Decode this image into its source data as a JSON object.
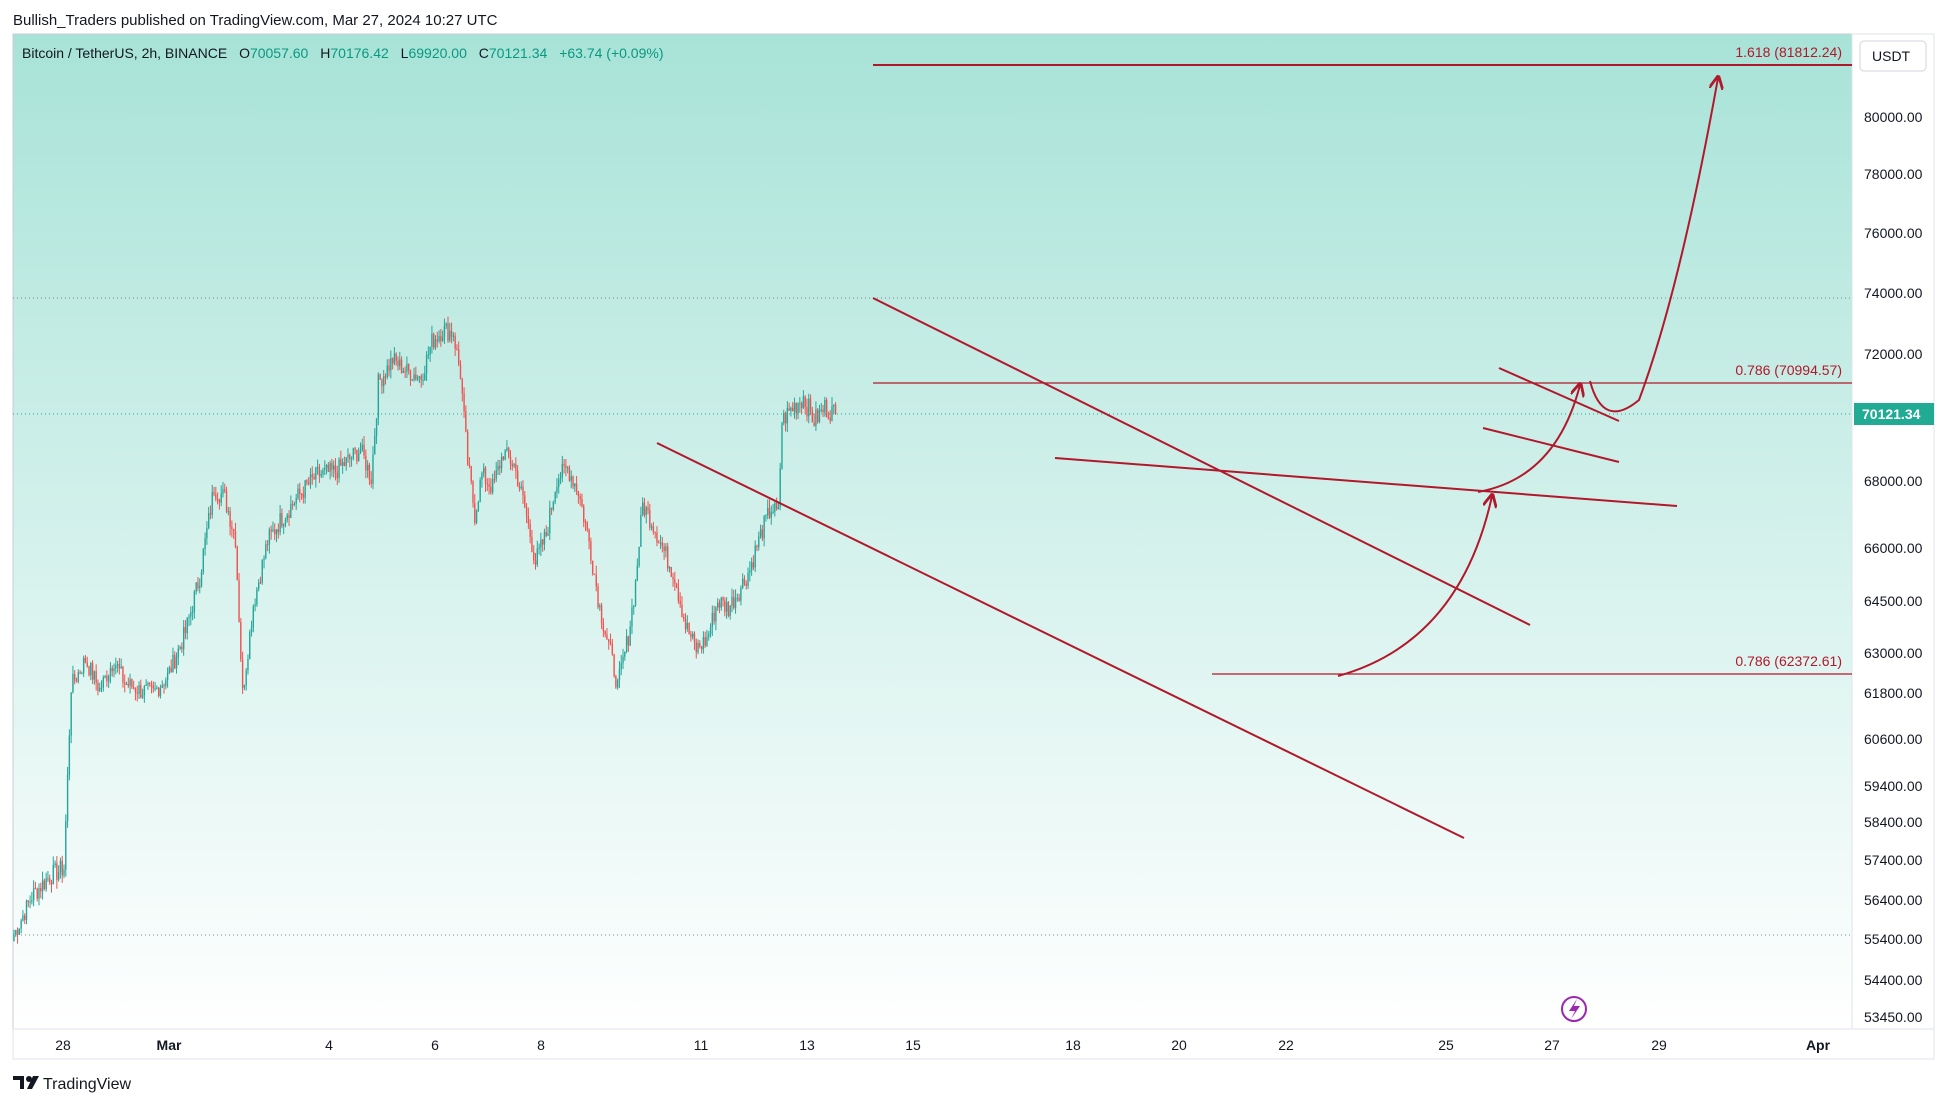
{
  "header": {
    "published_by": "Bullish_Traders published on TradingView.com, Mar 27, 2024 10:27 UTC"
  },
  "symbol_bar": {
    "pair": "Bitcoin / TetherUS, 2h, BINANCE",
    "open_label": "O",
    "open_value": "70057.60",
    "high_label": "H",
    "high_value": "70176.42",
    "low_label": "L",
    "low_value": "69920.00",
    "close_label": "C",
    "close_value": "70121.34",
    "change": "+63.74 (+0.09%)"
  },
  "currency_button": "USDT",
  "price_axis": {
    "ticks": [
      "80000.00",
      "78000.00",
      "76000.00",
      "74000.00",
      "72000.00",
      "68000.00",
      "66000.00",
      "64500.00",
      "63000.00",
      "61800.00",
      "60600.00",
      "59400.00",
      "58400.00",
      "57400.00",
      "56400.00",
      "55400.00",
      "54400.00",
      "53450.00"
    ],
    "current_price": "70121.34"
  },
  "time_axis": {
    "ticks": [
      "28",
      "Mar",
      "4",
      "6",
      "8",
      "11",
      "13",
      "15",
      "18",
      "20",
      "22",
      "25",
      "27",
      "29",
      "Apr"
    ]
  },
  "fib_labels": {
    "fib_1618": "1.618 (81812.24)",
    "fib_0786_top": "0.786 (70994.57)",
    "fib_0786_bottom": "0.786 (62372.61)"
  },
  "footer": {
    "brand": "TradingView"
  },
  "colors": {
    "bull": "#26a69a",
    "bear": "#ef5350",
    "drawing": "#b2182b",
    "bg_top": "#a8e3d8",
    "bg_bottom": "#ffffff",
    "price_badge": "#22ab94"
  },
  "chart_data": {
    "type": "candlestick",
    "title": "Bitcoin / TetherUS, 2h, BINANCE",
    "ylabel": "USDT",
    "ylim": [
      53450,
      82500
    ],
    "x_ticks": [
      "28",
      "Mar",
      "4",
      "6",
      "8",
      "11",
      "13",
      "15",
      "18",
      "20",
      "22",
      "25",
      "27",
      "29",
      "Apr"
    ],
    "ohlc_last": {
      "open": 70057.6,
      "high": 70176.42,
      "low": 69920.0,
      "close": 70121.34,
      "change": 63.74,
      "change_pct": 0.09
    },
    "fib_levels": [
      {
        "ratio": 1.618,
        "price": 81812.24
      },
      {
        "ratio": 0.786,
        "price": 70994.57
      },
      {
        "ratio": 0.786,
        "price": 62372.61
      }
    ],
    "dotted_levels": [
      73800,
      55300
    ],
    "anchors": [
      {
        "t": 0,
        "p": 55500
      },
      {
        "t": 10,
        "p": 56500
      },
      {
        "t": 20,
        "p": 57000
      },
      {
        "t": 28,
        "p": 57200
      },
      {
        "t": 32,
        "p": 62000
      },
      {
        "t": 40,
        "p": 62800
      },
      {
        "t": 48,
        "p": 61900
      },
      {
        "t": 56,
        "p": 62800
      },
      {
        "t": 62,
        "p": 62100
      },
      {
        "t": 70,
        "p": 61900
      },
      {
        "t": 78,
        "p": 61800
      },
      {
        "t": 86,
        "p": 62300
      },
      {
        "t": 96,
        "p": 63600
      },
      {
        "t": 104,
        "p": 65200
      },
      {
        "t": 112,
        "p": 67800
      },
      {
        "t": 118,
        "p": 67500
      },
      {
        "t": 124,
        "p": 66300
      },
      {
        "t": 128,
        "p": 61800
      },
      {
        "t": 134,
        "p": 64400
      },
      {
        "t": 142,
        "p": 66200
      },
      {
        "t": 150,
        "p": 66900
      },
      {
        "t": 160,
        "p": 67600
      },
      {
        "t": 170,
        "p": 68200
      },
      {
        "t": 180,
        "p": 68300
      },
      {
        "t": 188,
        "p": 68700
      },
      {
        "t": 194,
        "p": 69000
      },
      {
        "t": 200,
        "p": 68100
      },
      {
        "t": 204,
        "p": 71000
      },
      {
        "t": 212,
        "p": 71800
      },
      {
        "t": 220,
        "p": 71400
      },
      {
        "t": 228,
        "p": 71200
      },
      {
        "t": 234,
        "p": 72400
      },
      {
        "t": 240,
        "p": 72800
      },
      {
        "t": 246,
        "p": 72700
      },
      {
        "t": 250,
        "p": 71300
      },
      {
        "t": 254,
        "p": 68600
      },
      {
        "t": 258,
        "p": 67000
      },
      {
        "t": 262,
        "p": 68200
      },
      {
        "t": 268,
        "p": 67800
      },
      {
        "t": 274,
        "p": 68900
      },
      {
        "t": 280,
        "p": 68500
      },
      {
        "t": 286,
        "p": 67200
      },
      {
        "t": 292,
        "p": 65600
      },
      {
        "t": 298,
        "p": 66400
      },
      {
        "t": 304,
        "p": 68100
      },
      {
        "t": 310,
        "p": 68400
      },
      {
        "t": 316,
        "p": 67700
      },
      {
        "t": 322,
        "p": 66200
      },
      {
        "t": 328,
        "p": 64300
      },
      {
        "t": 334,
        "p": 63000
      },
      {
        "t": 338,
        "p": 62000
      },
      {
        "t": 344,
        "p": 63500
      },
      {
        "t": 348,
        "p": 65000
      },
      {
        "t": 352,
        "p": 67300
      },
      {
        "t": 358,
        "p": 66700
      },
      {
        "t": 364,
        "p": 65900
      },
      {
        "t": 370,
        "p": 65200
      },
      {
        "t": 376,
        "p": 63800
      },
      {
        "t": 382,
        "p": 63100
      },
      {
        "t": 388,
        "p": 63400
      },
      {
        "t": 394,
        "p": 64500
      },
      {
        "t": 400,
        "p": 64300
      },
      {
        "t": 406,
        "p": 64800
      },
      {
        "t": 412,
        "p": 65400
      },
      {
        "t": 418,
        "p": 66400
      },
      {
        "t": 424,
        "p": 67200
      },
      {
        "t": 428,
        "p": 67000
      },
      {
        "t": 430,
        "p": 69900
      },
      {
        "t": 436,
        "p": 70300
      },
      {
        "t": 442,
        "p": 70600
      },
      {
        "t": 448,
        "p": 69900
      },
      {
        "t": 454,
        "p": 70300
      },
      {
        "t": 460,
        "p": 70121
      }
    ]
  }
}
